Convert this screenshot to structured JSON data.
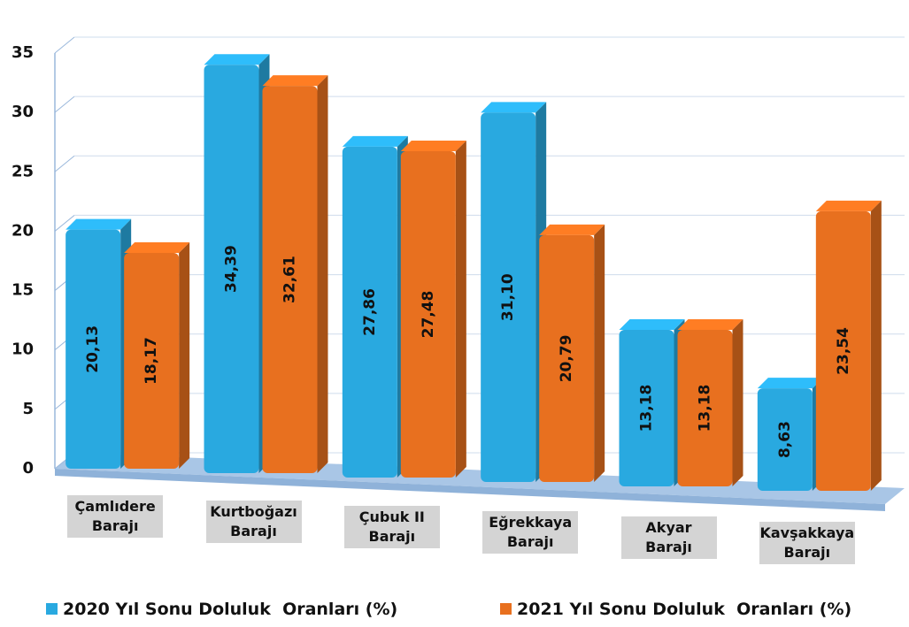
{
  "chart_data": {
    "type": "bar3d",
    "categories": [
      "Çamlıdere Barajı",
      "Kurtboğazı Barajı",
      "Çubuk II Barajı",
      "Eğrekkaya Barajı",
      "Akyar Barajı",
      "Kavşakkaya Barajı"
    ],
    "series": [
      {
        "name": "2020 Yıl Sonu Doluluk  Oranları (%)",
        "color": "#29a9e0",
        "values": [
          20.13,
          34.39,
          27.86,
          31.1,
          13.18,
          8.63
        ],
        "value_labels": [
          "20,13",
          "34,39",
          "27,86",
          "31,10",
          "13,18",
          "8,63"
        ]
      },
      {
        "name": "2021 Yıl Sonu Doluluk  Oranları (%)",
        "color": "#e8701f",
        "values": [
          18.17,
          32.61,
          27.48,
          20.79,
          13.18,
          23.54
        ],
        "value_labels": [
          "18,17",
          "32,61",
          "27,48",
          "20,79",
          "13,18",
          "23,54"
        ]
      }
    ],
    "ylim": [
      0,
      35
    ],
    "yticks": [
      0,
      5,
      10,
      15,
      20,
      25,
      30,
      35
    ],
    "grid": true
  }
}
